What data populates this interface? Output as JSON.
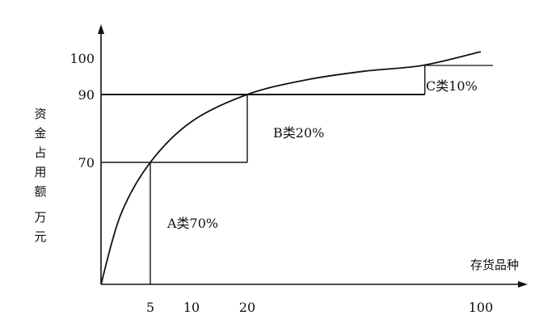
{
  "chart_data": {
    "type": "line",
    "title": "",
    "xlabel": "存货品种",
    "ylabel": "资金占用额",
    "ylabel_unit": "万元",
    "x_ticks": [
      5,
      10,
      20,
      100
    ],
    "y_ticks": [
      70,
      90,
      100
    ],
    "xlim": [
      0,
      100
    ],
    "ylim": [
      0,
      100
    ],
    "grid": false,
    "legend": "none",
    "curve": [
      {
        "x": 0,
        "y": 0
      },
      {
        "x": 2,
        "y": 40
      },
      {
        "x": 5,
        "y": 70
      },
      {
        "x": 10,
        "y": 82
      },
      {
        "x": 20,
        "y": 90
      },
      {
        "x": 40,
        "y": 95
      },
      {
        "x": 60,
        "y": 98
      },
      {
        "x": 80,
        "y": 100
      },
      {
        "x": 100,
        "y": 103
      }
    ],
    "classes": [
      {
        "label": "A类70%",
        "x_start": 0,
        "x_end": 5,
        "y_top": 70
      },
      {
        "label": "B类20%",
        "x_start": 5,
        "x_end": 20,
        "y_top": 90
      },
      {
        "label": "C类10%",
        "x_start": 20,
        "x_end": 80,
        "y_top": 100
      }
    ]
  }
}
